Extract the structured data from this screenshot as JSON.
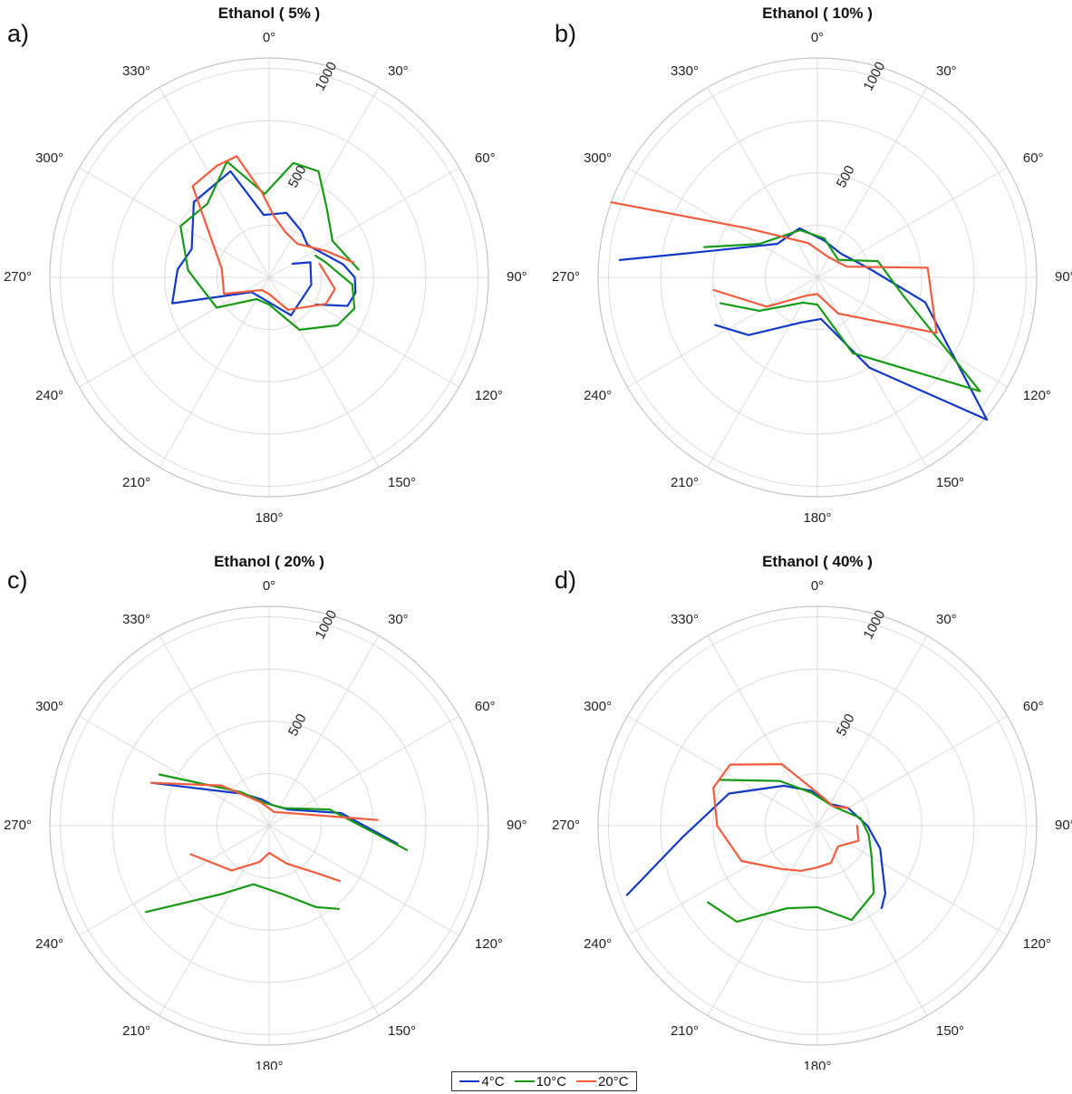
{
  "legend": {
    "entries": [
      {
        "name": "4°C",
        "color": "#1238c8"
      },
      {
        "name": "10°C",
        "color": "#169a16"
      },
      {
        "name": "20°C",
        "color": "#f25c3d"
      }
    ]
  },
  "chart_data": [
    {
      "type": "polar-line",
      "panel_label": "a)",
      "title": "Ethanol ( 5% )",
      "angle_labels": [
        "0°",
        "30°",
        "60°",
        "90°",
        "120°",
        "150°",
        "180°",
        "210°",
        "240°",
        "270°",
        "300°",
        "330°"
      ],
      "radial_tick_labels": [
        "500",
        "1000"
      ],
      "radial_ticks": [
        500,
        1000
      ],
      "rlim": [
        0,
        1050
      ],
      "grid": true,
      "series": [
        {
          "name": "4°C",
          "points": [
            [
              60,
              130
            ],
            [
              70,
              210
            ],
            [
              100,
              205
            ],
            [
              150,
              210
            ],
            [
              200,
              105
            ],
            [
              230,
              110
            ],
            [
              255,
              480
            ],
            [
              275,
              440
            ],
            [
              290,
              395
            ],
            [
              315,
              510
            ],
            [
              340,
              540
            ],
            [
              355,
              300
            ],
            [
              15,
              320
            ],
            [
              35,
              270
            ],
            [
              50,
              240
            ],
            [
              80,
              360
            ],
            [
              90,
              410
            ],
            [
              100,
              420
            ],
            [
              110,
              400
            ],
            [
              120,
              260
            ]
          ]
        },
        {
          "name": "10°C",
          "points": [
            [
              65,
              245
            ],
            [
              75,
              280
            ],
            [
              95,
              400
            ],
            [
              110,
              435
            ],
            [
              125,
              400
            ],
            [
              150,
              290
            ],
            [
              180,
              130
            ],
            [
              210,
              120
            ],
            [
              240,
              290
            ],
            [
              275,
              390
            ],
            [
              300,
              490
            ],
            [
              320,
              460
            ],
            [
              340,
              590
            ],
            [
              357,
              400
            ],
            [
              12,
              560
            ],
            [
              25,
              560
            ],
            [
              40,
              430
            ],
            [
              60,
              350
            ],
            [
              85,
              430
            ]
          ]
        },
        {
          "name": "20°C",
          "points": [
            [
              75,
              250
            ],
            [
              100,
              320
            ],
            [
              115,
              300
            ],
            [
              150,
              180
            ],
            [
              180,
              80
            ],
            [
              210,
              70
            ],
            [
              250,
              230
            ],
            [
              280,
              230
            ],
            [
              320,
              570
            ],
            [
              335,
              590
            ],
            [
              345,
              600
            ],
            [
              355,
              410
            ],
            [
              5,
              290
            ],
            [
              20,
              230
            ],
            [
              40,
              210
            ],
            [
              65,
              300
            ],
            [
              80,
              410
            ]
          ]
        }
      ]
    },
    {
      "type": "polar-line",
      "panel_label": "b)",
      "title": "Ethanol ( 10% )",
      "angle_labels": [
        "0°",
        "30°",
        "60°",
        "90°",
        "120°",
        "150°",
        "180°",
        "210°",
        "240°",
        "270°",
        "300°",
        "330°"
      ],
      "radial_tick_labels": [
        "500",
        "1000"
      ],
      "radial_ticks": [
        500,
        1000
      ],
      "rlim": [
        0,
        1050
      ],
      "grid": true,
      "series": [
        {
          "name": "4°C",
          "points": [
            [
              275,
              950
            ],
            [
              285,
              500
            ],
            [
              310,
              250
            ],
            [
              340,
              250
            ],
            [
              10,
              180
            ],
            [
              45,
              160
            ],
            [
              80,
              250
            ],
            [
              103,
              530
            ],
            [
              130,
              1060
            ],
            [
              150,
              500
            ],
            [
              175,
              200
            ],
            [
              200,
              230
            ],
            [
              230,
              430
            ],
            [
              245,
              540
            ]
          ]
        },
        {
          "name": "10°C",
          "points": [
            [
              285,
              560
            ],
            [
              300,
              320
            ],
            [
              340,
              240
            ],
            [
              10,
              190
            ],
            [
              50,
              130
            ],
            [
              75,
              300
            ],
            [
              102,
              420
            ],
            [
              125,
              950
            ],
            [
              155,
              400
            ],
            [
              180,
              130
            ],
            [
              210,
              140
            ],
            [
              240,
              320
            ],
            [
              255,
              480
            ]
          ]
        },
        {
          "name": "20°C",
          "points": [
            [
              290,
              1050
            ],
            [
              305,
              410
            ],
            [
              345,
              170
            ],
            [
              30,
              110
            ],
            [
              70,
              150
            ],
            [
              85,
              530
            ],
            [
              115,
              630
            ],
            [
              150,
              200
            ],
            [
              180,
              80
            ],
            [
              210,
              100
            ],
            [
              240,
              280
            ],
            [
              263,
              500
            ]
          ]
        }
      ]
    },
    {
      "type": "polar-line",
      "panel_label": "c)",
      "title": "Ethanol ( 20% )",
      "angle_labels": [
        "0°",
        "30°",
        "60°",
        "90°",
        "120°",
        "150°",
        "180°",
        "210°",
        "240°",
        "270°",
        "300°",
        "330°"
      ],
      "radial_tick_labels": [
        "500",
        "1000"
      ],
      "radial_ticks": [
        500,
        1000
      ],
      "rlim": [
        0,
        1050
      ],
      "grid": true,
      "series": [
        {
          "name": "4°C",
          "points": [
            [
              290,
              600
            ],
            [
              320,
              200
            ],
            [
              345,
              130
            ],
            [
              10,
              100
            ],
            [
              50,
              120
            ],
            [
              80,
              350
            ],
            [
              98,
              620
            ]
          ]
        },
        {
          "name": "10°C",
          "points": [
            [
              295,
              580
            ],
            [
              320,
              210
            ],
            [
              350,
              110
            ],
            [
              40,
              110
            ],
            [
              75,
              300
            ],
            [
              100,
              670
            ]
          ]
        },
        {
          "name": "20°C",
          "points": [
            [
              290,
              600
            ],
            [
              310,
              300
            ],
            [
              340,
              120
            ],
            [
              20,
              70
            ],
            [
              60,
              120
            ],
            [
              87,
              520
            ]
          ]
        },
        {
          "name": "20°C",
          "points": [
            [
              250,
              400
            ],
            [
              220,
              280
            ],
            [
              195,
              180
            ],
            [
              180,
              130
            ],
            [
              155,
              200
            ],
            [
              135,
              320
            ],
            [
              128,
              430
            ]
          ]
        },
        {
          "name": "10°C",
          "points": [
            [
              235,
              720
            ],
            [
              215,
              400
            ],
            [
              195,
              290
            ],
            [
              170,
              330
            ],
            [
              150,
              450
            ],
            [
              140,
              520
            ]
          ]
        }
      ]
    },
    {
      "type": "polar-line",
      "panel_label": "d)",
      "title": "Ethanol ( 40% )",
      "angle_labels": [
        "0°",
        "30°",
        "60°",
        "90°",
        "120°",
        "150°",
        "180°",
        "210°",
        "240°",
        "270°",
        "300°",
        "330°"
      ],
      "radial_tick_labels": [
        "500",
        "1000"
      ],
      "radial_ticks": [
        500,
        1000
      ],
      "rlim": [
        0,
        1050
      ],
      "grid": true,
      "series": [
        {
          "name": "4°C",
          "points": [
            [
              250,
              970
            ],
            [
              265,
              650
            ],
            [
              290,
              450
            ],
            [
              320,
              250
            ],
            [
              350,
              170
            ],
            [
              30,
              120
            ],
            [
              60,
              170
            ],
            [
              90,
              240
            ],
            [
              110,
              320
            ],
            [
              135,
              460
            ],
            [
              142,
              500
            ]
          ]
        },
        {
          "name": "10°C",
          "points": [
            [
              295,
              520
            ],
            [
              320,
              280
            ],
            [
              350,
              160
            ],
            [
              40,
              120
            ],
            [
              80,
              210
            ],
            [
              100,
              250
            ],
            [
              120,
              300
            ],
            [
              140,
              420
            ],
            [
              160,
              480
            ],
            [
              180,
              390
            ],
            [
              200,
              420
            ],
            [
              220,
              600
            ],
            [
              235,
              640
            ]
          ]
        },
        {
          "name": "20°C",
          "points": [
            [
              60,
              170
            ],
            [
              40,
              120
            ],
            [
              10,
              140
            ],
            [
              330,
              340
            ],
            [
              305,
              510
            ],
            [
              290,
              530
            ],
            [
              270,
              480
            ],
            [
              245,
              400
            ],
            [
              220,
              270
            ],
            [
              200,
              230
            ],
            [
              180,
              200
            ],
            [
              160,
              190
            ],
            [
              135,
              140
            ],
            [
              110,
              210
            ],
            [
              90,
              190
            ]
          ]
        }
      ]
    }
  ]
}
